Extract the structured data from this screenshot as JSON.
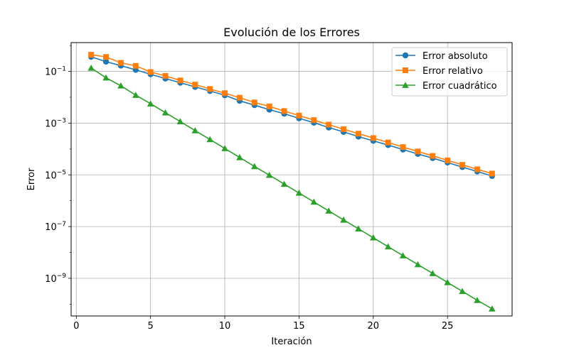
{
  "chart_data": {
    "type": "line",
    "title": "Evolución de los Errores",
    "xlabel": "Iteración",
    "ylabel": "Error",
    "xscale": "linear",
    "yscale": "log",
    "xlim": [
      -0.35,
      29.35
    ],
    "ylim": [
      3.5e-11,
      1.3
    ],
    "xticks": [
      0,
      5,
      10,
      15,
      20,
      25
    ],
    "xtick_labels": [
      "0",
      "5",
      "10",
      "15",
      "20",
      "25"
    ],
    "yticks": [
      1e-09,
      1e-07,
      1e-05,
      0.001,
      0.1
    ],
    "ytick_labels": [
      {
        "base": "10",
        "exp": "−9"
      },
      {
        "base": "10",
        "exp": "−7"
      },
      {
        "base": "10",
        "exp": "−5"
      },
      {
        "base": "10",
        "exp": "−3"
      },
      {
        "base": "10",
        "exp": "−1"
      }
    ],
    "grid": true,
    "legend_position": "top-right",
    "x": [
      1,
      2,
      3,
      4,
      5,
      6,
      7,
      8,
      9,
      10,
      11,
      12,
      13,
      14,
      15,
      16,
      17,
      18,
      19,
      20,
      21,
      22,
      23,
      24,
      25,
      26,
      27,
      28
    ],
    "series": [
      {
        "name": "Error absoluto",
        "color": "#1f77b4",
        "marker": "circle",
        "values": [
          0.367,
          0.238,
          0.167,
          0.115,
          0.0776,
          0.053,
          0.0365,
          0.0252,
          0.0175,
          0.012,
          0.00726,
          0.00497,
          0.00332,
          0.00232,
          0.00154,
          0.00104,
          0.000677,
          0.000459,
          0.000302,
          0.000207,
          0.000142,
          9.53e-05,
          6.43e-05,
          4.44e-05,
          2.99e-05,
          2e-05,
          1.35e-05,
          9.05e-06
        ]
      },
      {
        "name": "Error relativo",
        "color": "#ff7f0e",
        "marker": "square",
        "values": [
          0.441,
          0.362,
          0.214,
          0.164,
          0.0951,
          0.067,
          0.0447,
          0.0309,
          0.0209,
          0.0144,
          0.00961,
          0.00631,
          0.00443,
          0.00293,
          0.00196,
          0.00131,
          0.000876,
          0.000582,
          0.000392,
          0.000265,
          0.000179,
          0.000119,
          8.04e-05,
          5.41e-05,
          3.63e-05,
          2.44e-05,
          1.64e-05,
          1.12e-05
        ]
      },
      {
        "name": "Error cuadrático",
        "color": "#2ca02c",
        "marker": "triangle",
        "values": [
          0.135,
          0.0566,
          0.0278,
          0.0121,
          0.00562,
          0.00253,
          0.00115,
          0.000515,
          0.000233,
          0.000105,
          4.72e-05,
          2.12e-05,
          9.77e-06,
          4.4e-06,
          1.99e-06,
          8.94e-07,
          4.03e-07,
          1.81e-07,
          8.24e-08,
          3.72e-08,
          1.67e-08,
          7.52e-09,
          3.41e-09,
          1.55e-09,
          6.9e-10,
          3.14e-10,
          1.41e-10,
          6.6e-11
        ]
      }
    ]
  }
}
